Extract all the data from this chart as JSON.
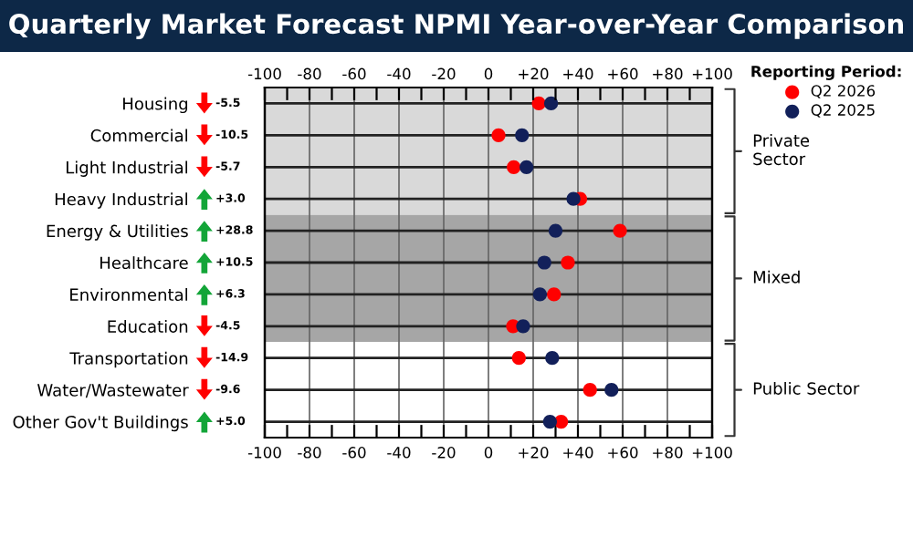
{
  "chart_data": {
    "type": "scatter",
    "title": "Quarterly Market Forecast NPMI Year-over-Year Comparison",
    "categories": [
      "Housing",
      "Commercial",
      "Light Industrial",
      "Heavy Industrial",
      "Energy & Utilities",
      "Healthcare",
      "Environmental",
      "Education",
      "Transportation",
      "Water/Wastewater",
      "Other Gov't Buildings"
    ],
    "orientation": "horizontal",
    "series": [
      {
        "name": "Q2 2026",
        "color": "#ff0000",
        "values": [
          22.5,
          4.5,
          11.3,
          41,
          58.8,
          35.5,
          29.3,
          11,
          13.6,
          45.4,
          32.5
        ]
      },
      {
        "name": "Q2 2025",
        "color": "#12205a",
        "values": [
          28,
          15,
          17,
          38,
          30,
          25,
          23,
          15.5,
          28.5,
          55,
          27.5
        ]
      }
    ],
    "annotations": [
      "-5.5",
      "-10.5",
      "-5.7",
      "+3.0",
      "+28.8",
      "+10.5",
      "+6.3",
      "-4.5",
      "-14.9",
      "-9.6",
      "+5.0"
    ],
    "bands": [
      {
        "axis": "y",
        "from": "Housing",
        "to": "Heavy Industrial",
        "label": "Private Sector",
        "color": "#d9d9d9"
      },
      {
        "axis": "y",
        "from": "Energy & Utilities",
        "to": "Education",
        "label": "Mixed",
        "color": "#a6a6a6"
      },
      {
        "axis": "y",
        "from": "Transportation",
        "to": "Other Gov't Buildings",
        "label": "Public Sector",
        "color": "#ffffff"
      }
    ],
    "xlim": [
      -100,
      100
    ],
    "xticks": [
      -100,
      {
        "value": -90,
        "label": null
      },
      -80,
      {
        "value": -70,
        "label": null
      },
      -60,
      {
        "value": -50,
        "label": null
      },
      -40,
      {
        "value": -30,
        "label": null
      },
      -20,
      {
        "value": -10,
        "label": null
      },
      0,
      {
        "value": 10,
        "label": null
      },
      {
        "value": 20,
        "label": "+20"
      },
      {
        "value": 30,
        "label": null
      },
      {
        "value": 40,
        "label": "+40"
      },
      {
        "value": 50,
        "label": null
      },
      {
        "value": 60,
        "label": "+60"
      },
      {
        "value": 70,
        "label": null
      },
      {
        "value": 80,
        "label": "+80"
      },
      {
        "value": 90,
        "label": null
      },
      {
        "value": 100,
        "label": "+100"
      }
    ],
    "x2lim": [
      -100,
      100
    ],
    "x2ticks": [
      -100,
      {
        "value": -90,
        "label": null
      },
      -80,
      {
        "value": -70,
        "label": null
      },
      -60,
      {
        "value": -50,
        "label": null
      },
      -40,
      {
        "value": -30,
        "label": null
      },
      -20,
      {
        "value": -10,
        "label": null
      },
      0,
      {
        "value": 10,
        "label": null
      },
      {
        "value": 20,
        "label": "+20"
      },
      {
        "value": 30,
        "label": null
      },
      {
        "value": 40,
        "label": "+40"
      },
      {
        "value": 50,
        "label": null
      },
      {
        "value": 60,
        "label": "+60"
      },
      {
        "value": 70,
        "label": null
      },
      {
        "value": 80,
        "label": "+80"
      },
      {
        "value": 90,
        "label": null
      },
      {
        "value": 100,
        "label": "+100"
      }
    ],
    "grid": true,
    "legend": "top right",
    "legend_title": "Reporting Period:",
    "marker": "circle"
  }
}
